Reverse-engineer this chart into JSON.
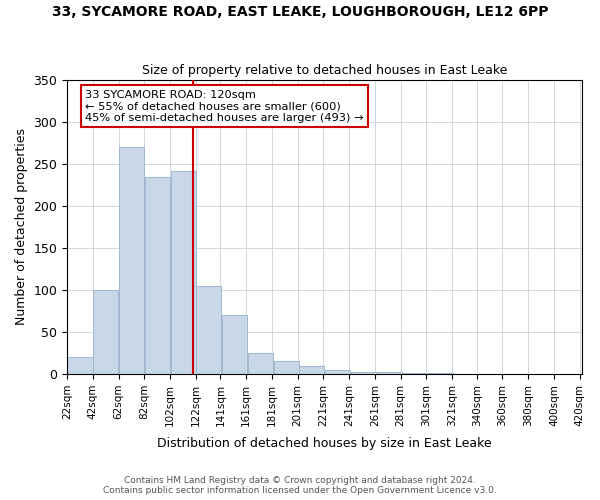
{
  "title1": "33, SYCAMORE ROAD, EAST LEAKE, LOUGHBOROUGH, LE12 6PP",
  "title2": "Size of property relative to detached houses in East Leake",
  "xlabel": "Distribution of detached houses by size in East Leake",
  "ylabel": "Number of detached properties",
  "annotation_line1": "33 SYCAMORE ROAD: 120sqm",
  "annotation_line2": "← 55% of detached houses are smaller (600)",
  "annotation_line3": "45% of semi-detached houses are larger (493) →",
  "property_size": 120,
  "footer1": "Contains HM Land Registry data © Crown copyright and database right 2024.",
  "footer2": "Contains public sector information licensed under the Open Government Licence v3.0.",
  "bar_color": "#c8d8e8",
  "bar_edge_color": "#a0b8d0",
  "vline_color": "#cc0000",
  "annotation_box_color": "#cc0000",
  "bins_left": [
    22,
    42,
    62,
    82,
    102,
    122,
    142,
    162,
    182,
    202,
    222,
    242,
    262,
    282,
    302,
    322,
    342,
    362,
    382,
    402
  ],
  "bin_width": 20,
  "counts": [
    20,
    100,
    270,
    234,
    241,
    105,
    70,
    25,
    15,
    10,
    5,
    3,
    2,
    1,
    1,
    0,
    0,
    0,
    0,
    0
  ],
  "ylim": [
    0,
    350
  ],
  "xlim": [
    22,
    422
  ],
  "yticks": [
    0,
    50,
    100,
    150,
    200,
    250,
    300,
    350
  ],
  "xtick_positions": [
    22,
    42,
    62,
    82,
    102,
    122,
    141,
    161,
    181,
    201,
    221,
    241,
    261,
    281,
    301,
    321,
    340,
    360,
    380,
    400,
    420
  ],
  "xtick_labels": [
    "22sqm",
    "42sqm",
    "62sqm",
    "82sqm",
    "102sqm",
    "122sqm",
    "141sqm",
    "161sqm",
    "181sqm",
    "201sqm",
    "221sqm",
    "241sqm",
    "261sqm",
    "281sqm",
    "301sqm",
    "321sqm",
    "340sqm",
    "360sqm",
    "380sqm",
    "400sqm",
    "420sqm"
  ]
}
